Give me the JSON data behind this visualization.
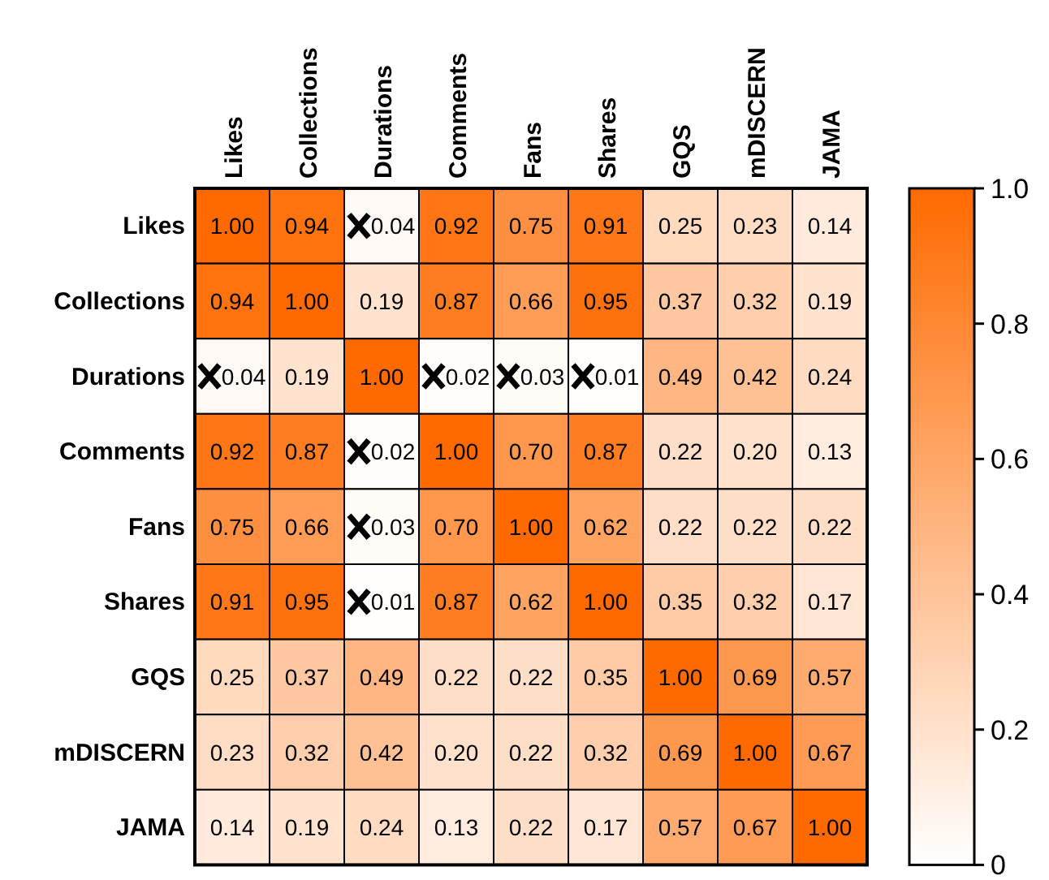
{
  "chart_data": {
    "type": "heatmap",
    "categories": [
      "Likes",
      "Collections",
      "Durations",
      "Comments",
      "Fans",
      "Shares",
      "GQS",
      "mDISCERN",
      "JAMA"
    ],
    "y_categories": [
      "Likes",
      "Collections",
      "Durations",
      "Comments",
      "Fans",
      "Shares",
      "GQS",
      "mDISCERN",
      "JAMA"
    ],
    "cells": [
      [
        1.0,
        0.94,
        0.04,
        0.92,
        0.75,
        0.91,
        0.25,
        0.23,
        0.14
      ],
      [
        0.94,
        1.0,
        0.19,
        0.87,
        0.66,
        0.95,
        0.37,
        0.32,
        0.19
      ],
      [
        0.04,
        0.19,
        1.0,
        0.02,
        0.03,
        0.01,
        0.49,
        0.42,
        0.24
      ],
      [
        0.92,
        0.87,
        0.02,
        1.0,
        0.7,
        0.87,
        0.22,
        0.2,
        0.13
      ],
      [
        0.75,
        0.66,
        0.03,
        0.7,
        1.0,
        0.62,
        0.22,
        0.22,
        0.22
      ],
      [
        0.91,
        0.95,
        0.01,
        0.87,
        0.62,
        1.0,
        0.35,
        0.32,
        0.17
      ],
      [
        0.25,
        0.37,
        0.49,
        0.22,
        0.22,
        0.35,
        1.0,
        0.69,
        0.57
      ],
      [
        0.23,
        0.32,
        0.42,
        0.2,
        0.22,
        0.32,
        0.69,
        1.0,
        0.67
      ],
      [
        0.14,
        0.19,
        0.24,
        0.13,
        0.22,
        0.17,
        0.57,
        0.67,
        1.0
      ]
    ],
    "cell_labels": [
      [
        "1.00",
        "0.94",
        "0.04",
        "0.92",
        "0.75",
        "0.91",
        "0.25",
        "0.23",
        "0.14"
      ],
      [
        "0.94",
        "1.00",
        "0.19",
        "0.87",
        "0.66",
        "0.95",
        "0.37",
        "0.32",
        "0.19"
      ],
      [
        "0.04",
        "0.19",
        "1.00",
        "0.02",
        "0.03",
        "0.01",
        "0.49",
        "0.42",
        "0.24"
      ],
      [
        "0.92",
        "0.87",
        "0.02",
        "1.00",
        "0.70",
        "0.87",
        "0.22",
        "0.20",
        "0.13"
      ],
      [
        "0.75",
        "0.66",
        "0.03",
        "0.70",
        "1.00",
        "0.62",
        "0.22",
        "0.22",
        "0.22"
      ],
      [
        "0.91",
        "0.95",
        "0.01",
        "0.87",
        "0.62",
        "1.00",
        "0.35",
        "0.32",
        "0.17"
      ],
      [
        "0.25",
        "0.37",
        "0.49",
        "0.22",
        "0.22",
        "0.35",
        "1.00",
        "0.69",
        "0.57"
      ],
      [
        "0.23",
        "0.32",
        "0.42",
        "0.20",
        "0.22",
        "0.32",
        "0.69",
        "1.00",
        "0.67"
      ],
      [
        "0.14",
        "0.19",
        "0.24",
        "0.13",
        "0.22",
        "0.17",
        "0.57",
        "0.67",
        "1.00"
      ]
    ],
    "colors": [
      "#ffffff",
      "#ff6a00"
    ],
    "clim": [
      0,
      1
    ],
    "cticks": [
      0,
      0.2,
      0.4,
      0.6,
      0.8,
      {
        "value": 1,
        "label": "1.0"
      }
    ]
  }
}
